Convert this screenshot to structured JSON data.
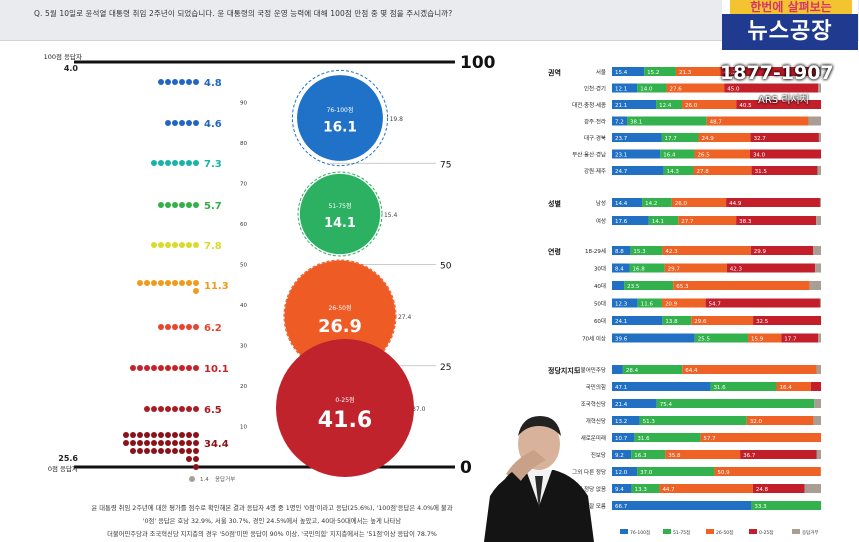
{
  "question": "Q. 5월 10일로 윤석열 대통령 취임 2주년이 되었습니다. 윤 대통령의 국정 운영 능력에 대해 100점 만점 중 몇 점을 주시겠습니까?",
  "logo": {
    "top": "한번에 살펴보는",
    "main": "뉴스공장"
  },
  "phone": "1877-1907",
  "ars": "ARS 리서치",
  "footnotes": [
    "윤 대통령 취임 2주년에 대한 평가를 점수로 확인해본 결과 응답자 4명 중 1명인 '0점'이라고 응답(25.6%), '100점'응답은 4.0%에 불과",
    "'0점' 응답은 호남 32.9%, 서울 30.7%, 경인 24.5%에서 높았고, 40대·50대에서는 높게 나타남",
    "더불어민주당과 조국혁신당 지지층의 경우 '50점'미만 응답이 90% 이상, '국민의힘' 지지층에서는 '51점'이상 응답이 78.7%"
  ],
  "chart_data": [
    {
      "type": "bubble-dot",
      "top_label": "100점 응답자",
      "top_value": "4.0",
      "bottom_label": "0점 응답자",
      "bottom_value": "25.6",
      "axis_ticks": [
        "100",
        "75",
        "50",
        "25",
        "0"
      ],
      "minor_ticks": [
        "90",
        "80",
        "70",
        "60",
        "50",
        "40",
        "30",
        "20",
        "10"
      ],
      "rows": [
        {
          "value": "4.8",
          "color": "#2166c2"
        },
        {
          "value": "4.6",
          "color": "#2166c2"
        },
        {
          "value": "7.3",
          "color": "#18b3a8"
        },
        {
          "value": "5.7",
          "color": "#32b149"
        },
        {
          "value": "7.8",
          "color": "#d8dc28"
        },
        {
          "value": "11.3",
          "color": "#f19a1c"
        },
        {
          "value": "6.2",
          "color": "#e5462e"
        },
        {
          "value": "10.1",
          "color": "#c52229"
        },
        {
          "value": "6.5",
          "color": "#a81d23"
        },
        {
          "value": "34.4",
          "color": "#8c1219"
        }
      ],
      "no_response": {
        "value": "1.4",
        "label": "응답거부"
      },
      "bubbles": [
        {
          "range": "76-100점",
          "value": 16.1,
          "label": "16.1",
          "prev": "19.8",
          "color": "#1f72c7"
        },
        {
          "range": "51-75점",
          "value": 14.1,
          "label": "14.1",
          "prev": "15.4",
          "color": "#2bb161"
        },
        {
          "range": "26-50점",
          "value": 26.9,
          "label": "26.9",
          "prev": "27.4",
          "color": "#ef5b25"
        },
        {
          "range": "0-25점",
          "value": 41.6,
          "label": "41.6",
          "prev": "37.0",
          "color": "#c0232c"
        }
      ]
    },
    {
      "type": "stacked-bar-horizontal",
      "legend": [
        "76-100점",
        "51-75점",
        "26-50점",
        "0-25점",
        "응답거부"
      ],
      "colors": [
        "#2270c3",
        "#33b14c",
        "#ef6226",
        "#c21f2b",
        "#a89e93"
      ],
      "groups": [
        {
          "name": "권역",
          "rows": [
            {
              "label": "서울",
              "values": [
                15.4,
                15.2,
                21.3,
                46.2,
                1.9
              ]
            },
            {
              "label": "인천·경기",
              "values": [
                12.1,
                14.0,
                27.6,
                45.0,
                1.3
              ]
            },
            {
              "label": "대전·충청·세종",
              "values": [
                21.1,
                12.4,
                26.0,
                40.5,
                0
              ]
            },
            {
              "label": "광주·전라",
              "values": [
                7.2,
                38.1,
                48.7,
                0,
                6.0
              ]
            },
            {
              "label": "대구·경북",
              "values": [
                23.7,
                17.7,
                24.9,
                32.7,
                1.0
              ]
            },
            {
              "label": "부산·울산·경남",
              "values": [
                23.1,
                16.4,
                26.5,
                34.0,
                0
              ]
            },
            {
              "label": "강원·제주",
              "values": [
                24.7,
                14.3,
                27.8,
                31.5,
                1.7
              ]
            }
          ]
        },
        {
          "name": "성별",
          "rows": [
            {
              "label": "남성",
              "values": [
                14.4,
                14.2,
                26.0,
                44.9,
                0.5
              ]
            },
            {
              "label": "여성",
              "values": [
                17.6,
                14.1,
                27.7,
                38.3,
                2.3
              ]
            }
          ]
        },
        {
          "name": "연령",
          "rows": [
            {
              "label": "18-29세",
              "values": [
                8.8,
                15.3,
                42.3,
                29.9,
                3.7
              ]
            },
            {
              "label": "30대",
              "values": [
                8.4,
                16.8,
                29.7,
                42.3,
                2.8
              ]
            },
            {
              "label": "40대",
              "values": [
                5.8,
                23.5,
                65.3,
                0,
                5.4
              ]
            },
            {
              "label": "50대",
              "values": [
                12.3,
                11.6,
                20.9,
                54.7,
                0.5
              ]
            },
            {
              "label": "60대",
              "values": [
                24.1,
                13.8,
                29.6,
                32.5,
                0
              ]
            },
            {
              "label": "70세 이상",
              "values": [
                39.6,
                25.5,
                15.9,
                17.7,
                1.3
              ]
            }
          ]
        },
        {
          "name": "정당지지도",
          "rows": [
            {
              "label": "더불어민주당",
              "values": [
                5.2,
                28.4,
                64.4,
                0,
                2.0
              ]
            },
            {
              "label": "국민의힘",
              "values": [
                47.1,
                31.6,
                16.4,
                4.9,
                0
              ]
            },
            {
              "label": "조국혁신당",
              "values": [
                21.4,
                75.4,
                0,
                0,
                3.2
              ]
            },
            {
              "label": "개혁신당",
              "values": [
                13.2,
                51.3,
                32.0,
                0,
                3.5
              ]
            },
            {
              "label": "새로운미래",
              "values": [
                10.7,
                31.6,
                57.7,
                0,
                0
              ]
            },
            {
              "label": "진보당",
              "values": [
                9.2,
                16.3,
                35.8,
                36.7,
                2.0
              ]
            },
            {
              "label": "그외 다른 정당",
              "values": [
                12.0,
                37.0,
                50.9,
                0,
                0.1
              ]
            },
            {
              "label": "지지 정당 없음",
              "values": [
                9.4,
                13.3,
                44.7,
                24.8,
                7.8
              ]
            },
            {
              "label": "잘 모름",
              "values": [
                66.7,
                33.3,
                0,
                0,
                0
              ]
            }
          ]
        }
      ]
    }
  ]
}
